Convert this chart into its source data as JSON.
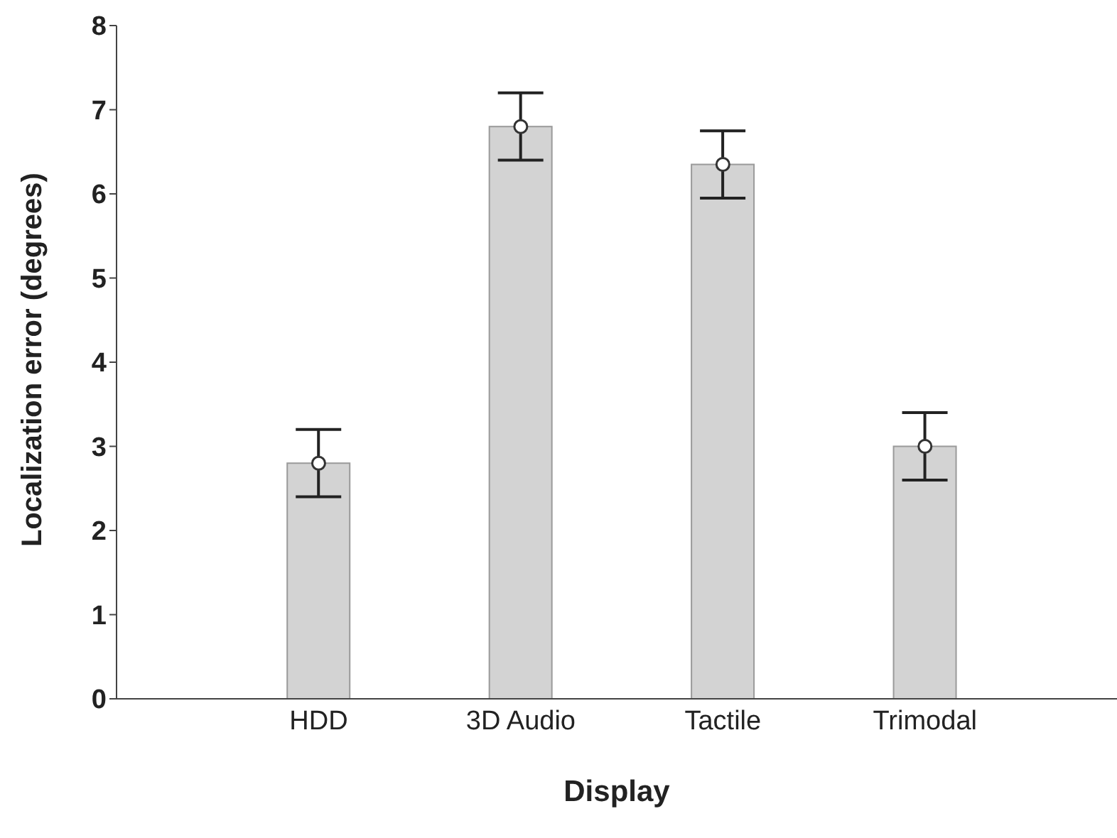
{
  "chart_data": {
    "type": "bar",
    "xlabel": "Display",
    "ylabel": "Localization error (degrees)",
    "categories": [
      "HDD",
      "3D Audio",
      "Tactile",
      "Trimodal"
    ],
    "series": [
      {
        "color": "#d3d3d3",
        "values": [
          2.8,
          6.8,
          6.35,
          3.0
        ],
        "errors": [
          0.4,
          0.4,
          0.4,
          0.4
        ]
      },
      {
        "type": "scatter",
        "color": "#ffffff",
        "x": [
          "HDD",
          "3D Audio",
          "Tactile",
          "Trimodal"
        ],
        "values": [
          2.8,
          6.8,
          6.35,
          3.0
        ],
        "marker": "circle"
      }
    ],
    "ylim": [
      0,
      8
    ],
    "yticks": [
      0,
      1,
      2,
      3,
      4,
      5,
      6,
      7,
      8
    ],
    "grid": false,
    "legend": false
  }
}
